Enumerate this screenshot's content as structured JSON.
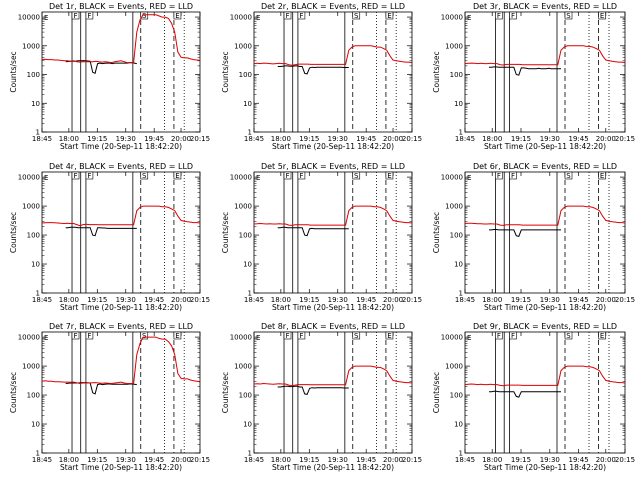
{
  "chart_data": [
    {
      "type": "line",
      "title": "Det 1r, BLACK = Events, RED = LLD",
      "events": [
        {
          "series": "BLACK",
          "y": [
            280,
            285,
            290,
            290,
            290,
            300,
            300,
            305,
            300,
            295,
            290,
            120,
            110,
            240,
            250,
            240,
            245,
            250,
            250,
            240,
            250,
            250,
            250,
            250,
            250,
            250,
            255,
            260,
            250,
            240
          ]
        },
        {
          "series": "RED",
          "y": [
            330,
            340,
            330,
            330,
            320,
            320,
            310,
            300,
            300,
            290,
            300,
            280,
            270,
            280,
            280,
            280,
            280,
            290,
            280,
            270,
            280,
            270,
            260,
            280,
            290,
            300,
            280,
            260,
            260,
            260,
            3000,
            8000,
            12000,
            12000,
            12000,
            12000,
            12000,
            11000,
            10000,
            10000,
            9000,
            6000,
            3000,
            600,
            400,
            380,
            380,
            350,
            330,
            320,
            310
          ]
        }
      ]
    },
    {
      "type": "line",
      "title": "Det 2r, BLACK = Events, RED = LLD",
      "events": [
        {
          "series": "BLACK",
          "y": [
            190,
            190,
            195,
            200,
            200,
            195,
            195,
            200,
            200,
            190,
            190,
            110,
            105,
            170,
            180,
            175,
            180,
            180,
            180,
            180,
            180,
            180,
            180,
            180,
            180,
            180,
            180,
            175,
            175,
            175
          ]
        },
        {
          "series": "RED",
          "y": [
            240,
            245,
            240,
            250,
            245,
            240,
            235,
            240,
            245,
            240,
            240,
            220,
            210,
            220,
            230,
            230,
            230,
            230,
            225,
            225,
            225,
            225,
            225,
            225,
            225,
            225,
            225,
            225,
            225,
            225,
            700,
            900,
            1000,
            1000,
            1000,
            1000,
            1000,
            1000,
            950,
            900,
            900,
            800,
            700,
            450,
            320,
            300,
            290,
            280,
            270,
            270,
            260
          ]
        }
      ]
    },
    {
      "type": "line",
      "title": "Det 3r, BLACK = Events, RED = LLD",
      "events": [
        {
          "series": "BLACK",
          "y": [
            180,
            180,
            185,
            185,
            180,
            180,
            180,
            180,
            180,
            180,
            180,
            100,
            95,
            170,
            170,
            165,
            160,
            160,
            160,
            160,
            165,
            160,
            160,
            160,
            165,
            160,
            160,
            160,
            160,
            160
          ]
        },
        {
          "series": "RED",
          "y": [
            240,
            245,
            250,
            245,
            240,
            245,
            240,
            240,
            245,
            240,
            240,
            220,
            215,
            225,
            225,
            225,
            225,
            225,
            220,
            220,
            220,
            220,
            220,
            220,
            220,
            220,
            220,
            220,
            220,
            220,
            700,
            900,
            1000,
            1000,
            1000,
            1000,
            1000,
            1000,
            950,
            950,
            900,
            800,
            700,
            450,
            320,
            300,
            290,
            280,
            270,
            270,
            260
          ]
        }
      ]
    },
    {
      "type": "line",
      "title": "Det 4r, BLACK = Events, RED = LLD",
      "events": [
        {
          "series": "BLACK",
          "y": [
            180,
            180,
            185,
            185,
            185,
            180,
            180,
            180,
            180,
            180,
            180,
            100,
            95,
            180,
            180,
            175,
            175,
            170,
            170,
            170,
            170,
            170,
            170,
            170,
            170,
            170,
            170,
            170,
            170,
            170
          ]
        },
        {
          "series": "RED",
          "y": [
            260,
            265,
            270,
            270,
            265,
            260,
            255,
            250,
            255,
            250,
            250,
            230,
            210,
            230,
            235,
            230,
            230,
            230,
            225,
            225,
            225,
            225,
            225,
            225,
            225,
            225,
            225,
            225,
            225,
            225,
            700,
            900,
            1000,
            1000,
            1000,
            1000,
            1000,
            1000,
            950,
            950,
            900,
            800,
            700,
            450,
            320,
            300,
            290,
            280,
            270,
            270,
            260
          ]
        }
      ]
    },
    {
      "type": "line",
      "title": "Det 5r, BLACK = Events, RED = LLD",
      "events": [
        {
          "series": "BLACK",
          "y": [
            180,
            180,
            185,
            185,
            180,
            180,
            180,
            180,
            180,
            180,
            180,
            100,
            95,
            165,
            170,
            165,
            165,
            165,
            165,
            165,
            165,
            165,
            165,
            165,
            165,
            165,
            165,
            165,
            165,
            165
          ]
        },
        {
          "series": "RED",
          "y": [
            240,
            245,
            250,
            245,
            240,
            245,
            240,
            240,
            245,
            240,
            240,
            220,
            215,
            225,
            225,
            225,
            225,
            225,
            220,
            220,
            220,
            220,
            220,
            220,
            220,
            220,
            220,
            220,
            220,
            220,
            700,
            900,
            1000,
            1000,
            1000,
            1000,
            1000,
            1000,
            950,
            950,
            900,
            800,
            700,
            450,
            320,
            300,
            290,
            280,
            270,
            270,
            260
          ]
        }
      ]
    },
    {
      "type": "line",
      "title": "Det 6r, BLACK = Events, RED = LLD",
      "events": [
        {
          "series": "BLACK",
          "y": [
            150,
            150,
            155,
            155,
            150,
            150,
            150,
            150,
            150,
            150,
            150,
            95,
            90,
            150,
            150,
            150,
            150,
            150,
            150,
            150,
            150,
            150,
            150,
            150,
            150,
            150,
            150,
            150,
            150,
            150
          ]
        },
        {
          "series": "RED",
          "y": [
            250,
            255,
            255,
            250,
            245,
            245,
            240,
            240,
            245,
            240,
            240,
            220,
            215,
            225,
            225,
            225,
            225,
            225,
            220,
            220,
            220,
            220,
            220,
            220,
            220,
            220,
            220,
            220,
            220,
            220,
            700,
            900,
            1000,
            1000,
            1000,
            1000,
            1000,
            1000,
            950,
            950,
            900,
            800,
            700,
            450,
            320,
            300,
            290,
            280,
            270,
            270,
            260
          ]
        }
      ]
    },
    {
      "type": "line",
      "title": "Det 7r, BLACK = Events, RED = LLD",
      "events": [
        {
          "series": "BLACK",
          "y": [
            250,
            255,
            260,
            260,
            260,
            260,
            265,
            270,
            270,
            265,
            260,
            120,
            110,
            230,
            240,
            230,
            235,
            240,
            240,
            235,
            235,
            235,
            235,
            235,
            235,
            235,
            240,
            240,
            235,
            230
          ]
        },
        {
          "series": "RED",
          "y": [
            300,
            310,
            300,
            300,
            290,
            290,
            285,
            280,
            280,
            275,
            280,
            265,
            250,
            260,
            260,
            260,
            265,
            270,
            260,
            255,
            260,
            255,
            250,
            260,
            270,
            280,
            260,
            250,
            250,
            250,
            2500,
            6000,
            10000,
            10000,
            10000,
            10000,
            10000,
            9000,
            8500,
            8500,
            7000,
            5000,
            2500,
            550,
            380,
            360,
            360,
            330,
            310,
            300,
            290
          ]
        }
      ]
    },
    {
      "type": "line",
      "title": "Det 8r, BLACK = Events, RED = LLD",
      "events": [
        {
          "series": "BLACK",
          "y": [
            190,
            190,
            195,
            200,
            200,
            195,
            195,
            200,
            200,
            190,
            190,
            110,
            105,
            170,
            180,
            175,
            180,
            180,
            180,
            180,
            180,
            180,
            180,
            180,
            180,
            180,
            180,
            175,
            175,
            175
          ]
        },
        {
          "series": "RED",
          "y": [
            240,
            245,
            240,
            250,
            245,
            240,
            235,
            240,
            245,
            240,
            240,
            220,
            210,
            220,
            230,
            230,
            230,
            230,
            225,
            225,
            225,
            225,
            225,
            225,
            225,
            225,
            225,
            225,
            225,
            225,
            700,
            900,
            1000,
            1000,
            1000,
            1000,
            1000,
            1000,
            950,
            900,
            900,
            800,
            700,
            450,
            320,
            300,
            290,
            280,
            270,
            270,
            260
          ]
        }
      ]
    },
    {
      "type": "line",
      "title": "Det 9r, BLACK = Events, RED = LLD",
      "events": [
        {
          "series": "BLACK",
          "y": [
            130,
            130,
            135,
            135,
            130,
            130,
            130,
            130,
            130,
            130,
            130,
            90,
            85,
            130,
            130,
            130,
            130,
            130,
            130,
            130,
            130,
            130,
            130,
            130,
            130,
            130,
            130,
            130,
            130,
            130
          ]
        },
        {
          "series": "RED",
          "y": [
            230,
            235,
            240,
            235,
            230,
            235,
            230,
            230,
            235,
            230,
            230,
            215,
            210,
            220,
            220,
            220,
            220,
            220,
            215,
            215,
            215,
            215,
            215,
            215,
            215,
            215,
            215,
            215,
            215,
            215,
            700,
            900,
            1000,
            1000,
            1000,
            1000,
            1000,
            1000,
            950,
            950,
            900,
            800,
            700,
            450,
            320,
            300,
            290,
            280,
            270,
            270,
            260
          ]
        }
      ]
    }
  ],
  "shared": {
    "xlabel": "Start Time (20-Sep-11 18:42:20)",
    "ylabel": "Counts/sec",
    "xticks": [
      "18:45",
      "18:00",
      "19:15",
      "19:30",
      "19:45",
      "20:00",
      "20:15"
    ],
    "yticks": [
      "1",
      "10",
      "100",
      "1000",
      "10000"
    ],
    "ylim": [
      1,
      15000
    ],
    "series_colors": {
      "BLACK": "#000000",
      "RED": "#dd0000"
    },
    "flag_labels": [
      "F",
      "F",
      "S",
      "E"
    ],
    "top_left_label": "E"
  }
}
